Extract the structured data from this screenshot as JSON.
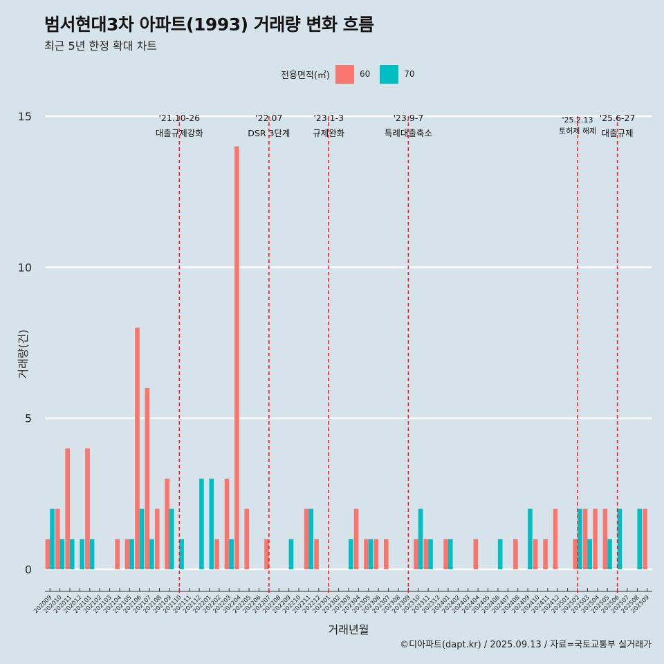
{
  "title": "범서현대3차 아파트(1993) 거래량 변화 흐름",
  "subtitle": "최근 5년 한정 확대 차트",
  "caption": "©디아파트(dapt.kr) / 2025.09.13 / 자료=국토교통부 실거래가",
  "legend": {
    "title": "전용면적(㎡)",
    "items": [
      {
        "label": "60",
        "color": "#f8766d"
      },
      {
        "label": "70",
        "color": "#00bfc4"
      }
    ]
  },
  "chart_data": {
    "type": "bar",
    "xlabel": "거래년월",
    "ylabel": "거래량(건)",
    "ylim": [
      0,
      15
    ],
    "yticks": [
      0,
      5,
      10,
      15
    ],
    "categories": [
      "202009",
      "202010",
      "202011",
      "202012",
      "202101",
      "202102",
      "202103",
      "202104",
      "202105",
      "202106",
      "202107",
      "202108",
      "202109",
      "202110",
      "202111",
      "202112",
      "202201",
      "202202",
      "202203",
      "202204",
      "202205",
      "202206",
      "202207",
      "202208",
      "202209",
      "202210",
      "202211",
      "202212",
      "202301",
      "202302",
      "202303",
      "202304",
      "202305",
      "202306",
      "202307",
      "202308",
      "202309",
      "202310",
      "202311",
      "202312",
      "202401",
      "202402",
      "202403",
      "202404",
      "202405",
      "202406",
      "202407",
      "202408",
      "202409",
      "202410",
      "202411",
      "202412",
      "202501",
      "202502",
      "202503",
      "202504",
      "202505",
      "202506",
      "202507",
      "202508",
      "202509"
    ],
    "series": [
      {
        "name": "60",
        "color": "#f8766d",
        "values": [
          1,
          2,
          4,
          0,
          4,
          0,
          0,
          1,
          1,
          8,
          6,
          2,
          3,
          0,
          0,
          0,
          0,
          1,
          3,
          14,
          2,
          0,
          1,
          0,
          0,
          0,
          2,
          1,
          0,
          0,
          0,
          2,
          1,
          1,
          1,
          0,
          0,
          1,
          1,
          0,
          1,
          0,
          0,
          1,
          0,
          0,
          0,
          1,
          0,
          1,
          1,
          2,
          0,
          1,
          2,
          2,
          2,
          0,
          0,
          0,
          2
        ]
      },
      {
        "name": "70",
        "color": "#00bfc4",
        "values": [
          2,
          1,
          1,
          1,
          1,
          0,
          0,
          0,
          1,
          2,
          1,
          0,
          2,
          1,
          0,
          3,
          3,
          0,
          1,
          0,
          0,
          0,
          0,
          0,
          1,
          0,
          2,
          0,
          0,
          0,
          1,
          0,
          1,
          0,
          0,
          0,
          0,
          2,
          1,
          0,
          1,
          0,
          0,
          0,
          0,
          1,
          0,
          0,
          2,
          0,
          0,
          0,
          0,
          2,
          1,
          0,
          1,
          2,
          0,
          2,
          0
        ]
      }
    ],
    "events": [
      {
        "category": "202110",
        "date": "'21.10-26",
        "label": "대출규제강화"
      },
      {
        "category": "202207",
        "date": "'22.07",
        "label": "DSR 3단계"
      },
      {
        "category": "202301",
        "date": "'23.1-3",
        "label": "규제완화"
      },
      {
        "category": "202309",
        "date": "'23.9-7",
        "label": "특례대출축소"
      },
      {
        "category": "202502",
        "date": "'25.2.13",
        "label": "토허제 해제"
      },
      {
        "category": "202506",
        "date": "'25.6-27",
        "label": "대출규제"
      }
    ]
  }
}
